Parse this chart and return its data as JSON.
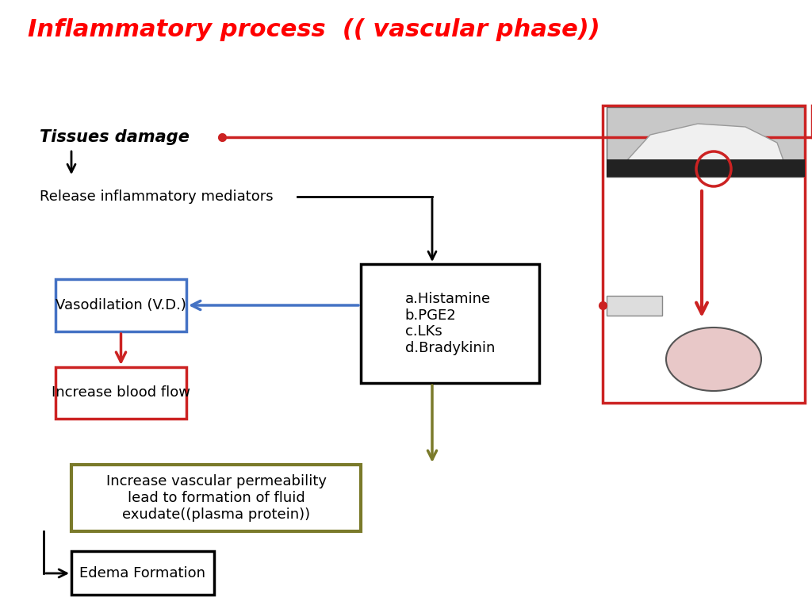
{
  "title": "Inflammatory process  (( vascular phase))",
  "title_color": "#FF0000",
  "title_fontsize": 22,
  "title_fontstyle": "italic",
  "title_fontweight": "bold",
  "bg_color": "#FFFFFF",
  "tissues_damage_text": "Tissues damage",
  "release_text": "Release inflammatory mediators",
  "vasodilation_text": "Vasodilation (V.D.)",
  "blood_flow_text": "Increase blood flow",
  "mediators_text": "a.Histamine\nb.PGE2\nc.LKs\nd.Bradykinin",
  "permeability_text": "Increase vascular permeability\nlead to formation of fluid\nexudate((plasma protein))",
  "edema_text": "Edema Formation",
  "red_color": "#CC2222",
  "blue_color": "#4472C4",
  "olive_color": "#7A7A2A",
  "black_color": "#000000"
}
